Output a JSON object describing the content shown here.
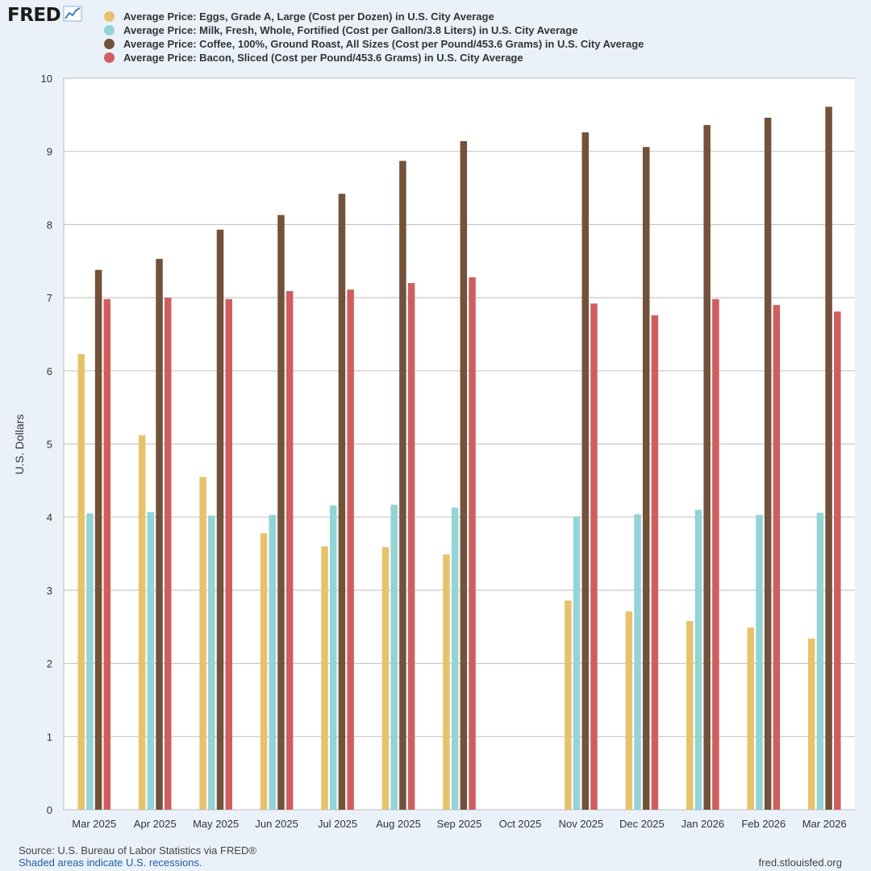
{
  "brand": {
    "logo_text": "FRED",
    "logo_icon": "trend-line-icon"
  },
  "chart_data": {
    "type": "bar",
    "title": "",
    "xlabel": "",
    "ylabel": "U.S. Dollars",
    "ylim": [
      0,
      10
    ],
    "yticks": [
      "0",
      "1",
      "2",
      "3",
      "4",
      "5",
      "6",
      "7",
      "8",
      "9",
      "10"
    ],
    "grid": true,
    "legend_position": "top",
    "categories": [
      "Mar 2025",
      "Apr 2025",
      "May 2025",
      "Jun 2025",
      "Jul 2025",
      "Aug 2025",
      "Sep 2025",
      "Oct 2025",
      "Nov 2025",
      "Dec 2025",
      "Jan 2026",
      "Feb 2026",
      "Mar 2026"
    ],
    "series": [
      {
        "name": "Average Price: Eggs, Grade A, Large (Cost per Dozen) in U.S. City Average",
        "color": "#e6c36b",
        "values": [
          6.23,
          5.12,
          4.55,
          3.78,
          3.6,
          3.59,
          3.49,
          null,
          2.86,
          2.71,
          2.58,
          2.49,
          2.34
        ]
      },
      {
        "name": "Average Price: Milk, Fresh, Whole, Fortified (Cost per Gallon/3.8 Liters) in U.S. City Average",
        "color": "#93d4d6",
        "values": [
          4.05,
          4.07,
          4.02,
          4.03,
          4.16,
          4.17,
          4.13,
          null,
          4.01,
          4.04,
          4.1,
          4.03,
          4.06
        ]
      },
      {
        "name": "Average Price: Coffee, 100%, Ground Roast, All Sizes (Cost per Pound/453.6 Grams) in U.S. City Average",
        "color": "#72523a",
        "values": [
          7.38,
          7.53,
          7.93,
          8.13,
          8.42,
          8.87,
          9.14,
          null,
          9.26,
          9.06,
          9.36,
          9.46,
          9.61
        ]
      },
      {
        "name": "Average Price: Bacon, Sliced (Cost per Pound/453.6 Grams) in U.S. City Average",
        "color": "#d05e5e",
        "values": [
          6.98,
          7.0,
          6.98,
          7.09,
          7.11,
          7.2,
          7.28,
          null,
          6.92,
          6.76,
          6.98,
          6.9,
          6.81
        ]
      }
    ]
  },
  "colors": {
    "background": "#eaf1f9",
    "plot": "#ffffff",
    "grid": "#c8c8c8"
  },
  "footer": {
    "source": "Source: U.S. Bureau of Labor Statistics via FRED®",
    "recession_note": "Shaded areas indicate U.S. recessions.",
    "site": "fred.stlouisfed.org"
  }
}
